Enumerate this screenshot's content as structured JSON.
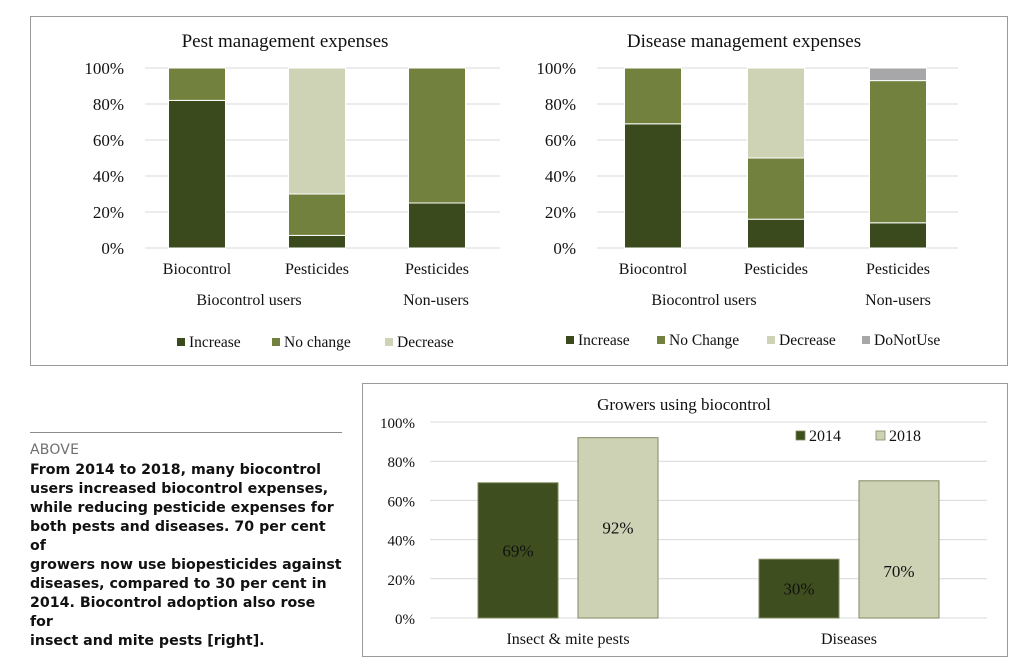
{
  "colors": {
    "increase": "#3a4a1c",
    "no_change": "#73813f",
    "decrease": "#cfd3b6",
    "do_not_use": "#a7a7a9",
    "y2014": "#3e4e1f",
    "y2018": "#cdd2b5"
  },
  "caption": {
    "above": "ABOVE",
    "lines": [
      "From 2014 to 2018, many biocontrol",
      "users increased biocontrol expenses,",
      "while reducing pesticide expenses for",
      "both pests and diseases. 70 per cent of",
      "growers now use biopesticides against",
      "diseases, compared to 30 per cent in",
      "2014. Biocontrol adoption also rose for",
      "insect and mite pests [right]."
    ]
  },
  "chart_data": [
    {
      "type": "bar",
      "stacked": true,
      "title": "Pest management expenses",
      "categories": [
        "Biocontrol",
        "Pesticides",
        "Pesticides"
      ],
      "groups": [
        {
          "label": "Biocontrol users",
          "span": [
            0,
            1
          ]
        },
        {
          "label": "Non-users",
          "span": [
            2,
            2
          ]
        }
      ],
      "series": [
        {
          "name": "Increase",
          "color_key": "increase",
          "values": [
            82,
            7,
            25
          ]
        },
        {
          "name": "No change",
          "color_key": "no_change",
          "values": [
            18,
            23,
            75
          ]
        },
        {
          "name": "Decrease",
          "color_key": "decrease",
          "values": [
            0,
            70,
            0
          ]
        }
      ],
      "yticks": [
        "0%",
        "20%",
        "40%",
        "60%",
        "80%",
        "100%"
      ],
      "ylim": [
        0,
        100
      ],
      "grid": true,
      "legend": "bottom"
    },
    {
      "type": "bar",
      "stacked": true,
      "title": "Disease management expenses",
      "categories": [
        "Biocontrol",
        "Pesticides",
        "Pesticides"
      ],
      "groups": [
        {
          "label": "Biocontrol users",
          "span": [
            0,
            1
          ]
        },
        {
          "label": "Non-users",
          "span": [
            2,
            2
          ]
        }
      ],
      "series": [
        {
          "name": "Increase",
          "color_key": "increase",
          "values": [
            69,
            16,
            14
          ]
        },
        {
          "name": "No Change",
          "color_key": "no_change",
          "values": [
            31,
            34,
            79
          ]
        },
        {
          "name": "Decrease",
          "color_key": "decrease",
          "values": [
            0,
            50,
            0
          ]
        },
        {
          "name": "DoNotUse",
          "color_key": "do_not_use",
          "values": [
            0,
            0,
            7
          ]
        }
      ],
      "yticks": [
        "0%",
        "20%",
        "40%",
        "60%",
        "80%",
        "100%"
      ],
      "ylim": [
        0,
        100
      ],
      "grid": true,
      "legend": "bottom"
    },
    {
      "type": "bar",
      "stacked": false,
      "title": "Growers using biocontrol",
      "categories": [
        "Insect & mite pests",
        "Diseases"
      ],
      "series": [
        {
          "name": "2014",
          "color_key": "y2014",
          "values": [
            69,
            30
          ],
          "labels": [
            "69%",
            "30%"
          ]
        },
        {
          "name": "2018",
          "color_key": "y2018",
          "values": [
            92,
            70
          ],
          "labels": [
            "92%",
            "70%"
          ]
        }
      ],
      "yticks": [
        "0%",
        "20%",
        "40%",
        "60%",
        "80%",
        "100%"
      ],
      "ylim": [
        0,
        100
      ],
      "grid": true,
      "legend": "top-right"
    }
  ]
}
